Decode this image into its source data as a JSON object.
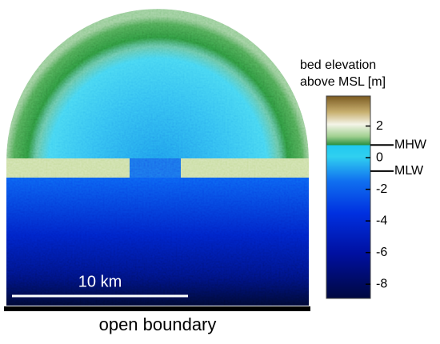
{
  "colorbar": {
    "title": [
      "bed elevation",
      "above MSL [m]"
    ],
    "lim": [
      -8.9,
      3.9
    ],
    "ticks": [
      2,
      0,
      -2,
      -4,
      -6,
      -8
    ],
    "levels": [
      {
        "label": "MHW",
        "value": 0.8
      },
      {
        "label": "MLW",
        "value": -0.85
      }
    ]
  },
  "scale_bar": {
    "label": "10 km"
  },
  "boundary_label": "open boundary"
}
